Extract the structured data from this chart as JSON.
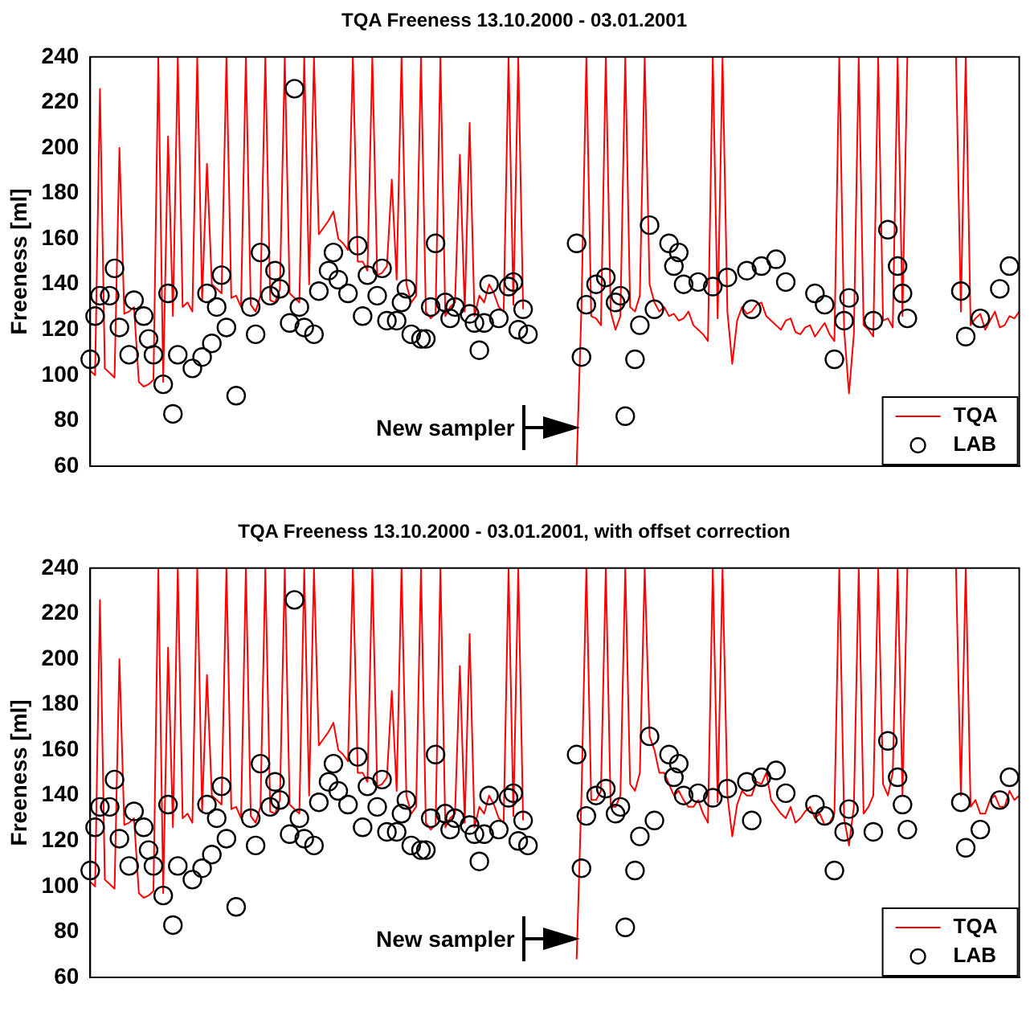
{
  "chart_data": [
    {
      "type": "line",
      "title": "TQA Freeness 13.10.2000 - 03.01.2001",
      "ylabel": "Freeness [ml]",
      "ylim": [
        60,
        240
      ],
      "yticks": [
        60,
        80,
        100,
        120,
        140,
        160,
        180,
        200,
        220,
        240
      ],
      "grid": false,
      "tick_labels": "y",
      "legend": "bottom right",
      "annotations": [
        "New sampler"
      ],
      "categories": [
        null,
        null,
        null,
        null,
        null,
        null,
        null,
        null,
        null,
        null,
        null,
        null,
        null,
        null,
        null,
        null,
        null,
        null,
        null,
        null,
        null,
        null,
        null,
        null,
        null,
        null,
        null,
        null,
        null,
        null,
        null,
        null,
        null,
        null,
        null,
        null,
        null,
        null,
        null,
        null,
        null,
        null,
        null,
        null,
        null,
        null,
        null,
        null,
        null,
        null,
        null,
        null,
        null,
        null,
        null,
        null,
        null,
        null,
        null,
        null,
        null,
        null,
        null,
        null,
        null,
        null,
        null,
        null,
        null,
        null,
        null,
        null,
        null,
        null,
        null,
        null,
        null,
        null,
        null,
        null,
        null,
        null,
        null,
        null,
        null,
        null,
        null,
        null,
        null,
        null,
        null,
        null,
        null,
        null,
        null,
        null,
        null,
        null,
        null,
        null,
        null,
        null,
        null,
        null,
        null,
        null,
        null,
        null,
        null,
        null,
        null,
        null,
        null,
        null,
        null,
        null,
        null,
        null,
        null,
        null,
        null,
        null,
        null,
        null,
        null,
        null,
        null,
        null,
        null,
        null,
        null,
        null,
        null,
        null,
        null,
        null,
        null,
        null,
        null,
        null,
        null,
        null,
        null,
        null,
        null,
        null,
        null,
        null,
        null,
        null,
        null,
        null,
        null,
        null,
        null,
        null,
        null,
        null,
        null,
        null,
        null,
        null,
        null,
        null,
        null,
        null,
        null,
        null,
        null,
        null,
        null,
        null,
        null,
        null,
        null,
        null,
        null,
        null,
        null,
        null,
        null,
        null,
        null,
        null,
        null,
        null,
        null,
        null,
        null,
        null,
        null,
        null
      ],
      "series": [
        {
          "name": "TQA",
          "type": "line",
          "color": "#ff0000",
          "values": [
            102,
            100,
            226,
            103,
            101,
            99,
            200,
            127,
            128,
            130,
            97,
            95,
            96,
            98,
            240,
            97,
            205,
            126,
            240,
            130,
            132,
            128,
            240,
            133,
            193,
            140,
            138,
            136,
            240,
            134,
            135,
            130,
            240,
            131,
            128,
            135,
            240,
            133,
            132,
            138,
            240,
            136,
            134,
            132,
            240,
            140,
            240,
            162,
            165,
            168,
            172,
            160,
            158,
            155,
            240,
            150,
            150,
            146,
            240,
            144,
            145,
            148,
            186,
            142,
            240,
            140,
            132,
            135,
            240,
            128,
            125,
            127,
            240,
            126,
            130,
            132,
            197,
            128,
            211,
            126,
            135,
            132,
            140,
            136,
            130,
            128,
            240,
            131,
            240,
            129,
            null,
            null,
            null,
            null,
            null,
            null,
            null,
            null,
            null,
            null,
            60,
            130,
            240,
            126,
            125,
            122,
            240,
            128,
            120,
            126,
            240,
            130,
            128,
            135,
            240,
            140,
            132,
            128,
            130,
            126,
            127,
            124,
            125,
            128,
            122,
            120,
            118,
            115,
            240,
            125,
            240,
            128,
            105,
            124,
            130,
            127,
            128,
            131,
            132,
            126,
            124,
            122,
            120,
            124,
            125,
            119,
            118,
            121,
            122,
            117,
            120,
            123,
            118,
            115,
            240,
            120,
            92,
            118,
            240,
            122,
            120,
            117,
            240,
            124,
            125,
            121,
            240,
            126,
            240,
            null,
            null,
            null,
            null,
            null,
            null,
            null,
            null,
            null,
            240,
            128,
            240,
            122,
            125,
            127,
            120,
            124,
            128,
            121,
            122,
            126,
            125,
            128
          ]
        },
        {
          "name": "LAB",
          "type": "scatter",
          "color": "#000000",
          "marker": "circle",
          "values": [
            107,
            126,
            135,
            null,
            135,
            147,
            121,
            null,
            109,
            133,
            null,
            126,
            116,
            109,
            null,
            96,
            136,
            83,
            109,
            null,
            null,
            103,
            null,
            108,
            136,
            114,
            130,
            144,
            121,
            null,
            91,
            null,
            null,
            130,
            118,
            154,
            null,
            135,
            146,
            138,
            null,
            123,
            226,
            130,
            121,
            null,
            118,
            137,
            null,
            146,
            154,
            142,
            null,
            136,
            null,
            157,
            126,
            144,
            null,
            135,
            147,
            124,
            null,
            124,
            132,
            138,
            118,
            null,
            116,
            116,
            130,
            158,
            null,
            132,
            125,
            130,
            null,
            null,
            127,
            123,
            111,
            123,
            140,
            null,
            125,
            null,
            139,
            141,
            120,
            129,
            118,
            null,
            null,
            null,
            null,
            null,
            null,
            null,
            null,
            null,
            158,
            108,
            131,
            null,
            140,
            null,
            143,
            null,
            132,
            135,
            82,
            null,
            107,
            122,
            null,
            166,
            129,
            null,
            null,
            158,
            148,
            154,
            140,
            null,
            null,
            141,
            null,
            null,
            139,
            null,
            null,
            143,
            null,
            null,
            null,
            146,
            129,
            null,
            148,
            null,
            null,
            151,
            null,
            141,
            null,
            null,
            null,
            null,
            null,
            136,
            null,
            131,
            null,
            107,
            null,
            124,
            134,
            null,
            null,
            null,
            null,
            124,
            null,
            null,
            164,
            null,
            148,
            136,
            125,
            null,
            null,
            null,
            null,
            null,
            null,
            null,
            null,
            null,
            null,
            137,
            117,
            null,
            null,
            125,
            null,
            null,
            null,
            138,
            null,
            148,
            null,
            null
          ]
        }
      ]
    },
    {
      "type": "line",
      "title": "TQA Freeness 13.10.2000 - 03.01.2001, with offset correction",
      "ylabel": "Freeness [ml]",
      "ylim": [
        60,
        240
      ],
      "yticks": [
        60,
        80,
        100,
        120,
        140,
        160,
        180,
        200,
        220,
        240
      ],
      "grid": false,
      "tick_labels": "y",
      "legend": "bottom right",
      "annotations": [
        "New sampler"
      ],
      "categories": [
        null,
        null,
        null,
        null,
        null,
        null,
        null,
        null,
        null,
        null,
        null,
        null,
        null,
        null,
        null,
        null,
        null,
        null,
        null,
        null,
        null,
        null,
        null,
        null,
        null,
        null,
        null,
        null,
        null,
        null,
        null,
        null,
        null,
        null,
        null,
        null,
        null,
        null,
        null,
        null,
        null,
        null,
        null,
        null,
        null,
        null,
        null,
        null,
        null,
        null,
        null,
        null,
        null,
        null,
        null,
        null,
        null,
        null,
        null,
        null,
        null,
        null,
        null,
        null,
        null,
        null,
        null,
        null,
        null,
        null,
        null,
        null,
        null,
        null,
        null,
        null,
        null,
        null,
        null,
        null,
        null,
        null,
        null,
        null,
        null,
        null,
        null,
        null,
        null,
        null,
        null,
        null,
        null,
        null,
        null,
        null,
        null,
        null,
        null,
        null,
        null,
        null,
        null,
        null,
        null,
        null,
        null,
        null,
        null,
        null,
        null,
        null,
        null,
        null,
        null,
        null,
        null,
        null,
        null,
        null,
        null,
        null,
        null,
        null,
        null,
        null,
        null,
        null,
        null,
        null,
        null,
        null,
        null,
        null,
        null,
        null,
        null,
        null,
        null,
        null,
        null,
        null,
        null,
        null,
        null,
        null,
        null,
        null,
        null,
        null,
        null,
        null,
        null,
        null,
        null,
        null,
        null,
        null,
        null,
        null,
        null,
        null,
        null,
        null,
        null,
        null,
        null,
        null,
        null,
        null,
        null,
        null,
        null,
        null,
        null,
        null,
        null,
        null,
        null,
        null,
        null,
        null,
        null,
        null,
        null,
        null,
        null,
        null,
        null,
        null,
        null,
        null
      ],
      "series": [
        {
          "name": "TQA",
          "type": "line",
          "color": "#ff0000",
          "values": [
            102,
            100,
            226,
            103,
            101,
            99,
            200,
            127,
            128,
            130,
            97,
            95,
            96,
            98,
            240,
            97,
            205,
            126,
            240,
            130,
            132,
            128,
            240,
            133,
            193,
            140,
            138,
            136,
            240,
            134,
            135,
            130,
            240,
            131,
            128,
            135,
            240,
            133,
            132,
            138,
            240,
            136,
            134,
            132,
            240,
            140,
            240,
            162,
            165,
            168,
            172,
            160,
            158,
            155,
            240,
            150,
            150,
            146,
            240,
            144,
            145,
            148,
            186,
            142,
            240,
            140,
            132,
            135,
            240,
            128,
            125,
            127,
            240,
            126,
            130,
            132,
            197,
            128,
            211,
            126,
            135,
            132,
            140,
            136,
            130,
            128,
            240,
            131,
            240,
            129,
            null,
            null,
            null,
            null,
            null,
            null,
            null,
            null,
            null,
            null,
            68,
            140,
            240,
            138,
            138,
            142,
            240,
            135,
            135,
            140,
            240,
            145,
            142,
            150,
            240,
            166,
            160,
            150,
            150,
            145,
            140,
            142,
            138,
            135,
            135,
            138,
            132,
            128,
            240,
            137,
            240,
            140,
            122,
            136,
            142,
            140,
            140,
            146,
            145,
            150,
            138,
            135,
            132,
            130,
            135,
            128,
            130,
            133,
            135,
            130,
            132,
            127,
            128,
            132,
            240,
            130,
            118,
            135,
            240,
            132,
            135,
            140,
            240,
            145,
            140,
            150,
            240,
            140,
            240,
            null,
            null,
            null,
            null,
            null,
            null,
            null,
            null,
            null,
            240,
            140,
            240,
            135,
            138,
            132,
            132,
            138,
            140,
            135,
            135,
            142,
            138,
            140
          ]
        },
        {
          "name": "LAB",
          "type": "scatter",
          "color": "#000000",
          "marker": "circle",
          "values": [
            107,
            126,
            135,
            null,
            135,
            147,
            121,
            null,
            109,
            133,
            null,
            126,
            116,
            109,
            null,
            96,
            136,
            83,
            109,
            null,
            null,
            103,
            null,
            108,
            136,
            114,
            130,
            144,
            121,
            null,
            91,
            null,
            null,
            130,
            118,
            154,
            null,
            135,
            146,
            138,
            null,
            123,
            226,
            130,
            121,
            null,
            118,
            137,
            null,
            146,
            154,
            142,
            null,
            136,
            null,
            157,
            126,
            144,
            null,
            135,
            147,
            124,
            null,
            124,
            132,
            138,
            118,
            null,
            116,
            116,
            130,
            158,
            null,
            132,
            125,
            130,
            null,
            null,
            127,
            123,
            111,
            123,
            140,
            null,
            125,
            null,
            139,
            141,
            120,
            129,
            118,
            null,
            null,
            null,
            null,
            null,
            null,
            null,
            null,
            null,
            158,
            108,
            131,
            null,
            140,
            null,
            143,
            null,
            132,
            135,
            82,
            null,
            107,
            122,
            null,
            166,
            129,
            null,
            null,
            158,
            148,
            154,
            140,
            null,
            null,
            141,
            null,
            null,
            139,
            null,
            null,
            143,
            null,
            null,
            null,
            146,
            129,
            null,
            148,
            null,
            null,
            151,
            null,
            141,
            null,
            null,
            null,
            null,
            null,
            136,
            null,
            131,
            null,
            107,
            null,
            124,
            134,
            null,
            null,
            null,
            null,
            124,
            null,
            null,
            164,
            null,
            148,
            136,
            125,
            null,
            null,
            null,
            null,
            null,
            null,
            null,
            null,
            null,
            null,
            137,
            117,
            null,
            null,
            125,
            null,
            null,
            null,
            138,
            null,
            148,
            null,
            null
          ]
        }
      ]
    }
  ]
}
